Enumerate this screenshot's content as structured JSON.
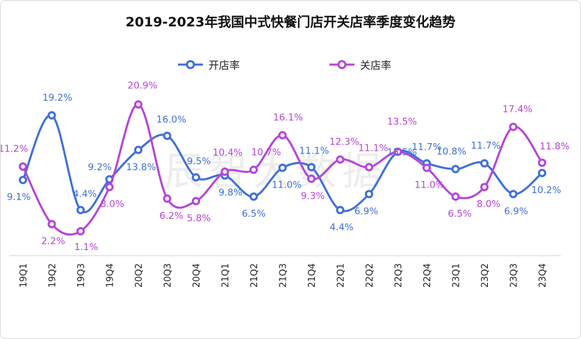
{
  "chart_data": {
    "type": "line",
    "title": "2019-2023年我国中式快餐门店开关店率季度变化趋势",
    "watermark": "辰智大数据",
    "legend_position": "top-center",
    "categories": [
      "19Q1",
      "19Q2",
      "19Q3",
      "19Q4",
      "20Q2",
      "20Q3",
      "20Q4",
      "21Q1",
      "21Q2",
      "21Q3",
      "21Q4",
      "22Q1",
      "22Q2",
      "22Q3",
      "22Q4",
      "23Q1",
      "23Q2",
      "23Q3",
      "23Q4"
    ],
    "ylim": [
      -2.5,
      23
    ],
    "series": [
      {
        "name": "开店率",
        "color": "#3f6fd8",
        "values": [
          9.1,
          19.2,
          4.4,
          9.2,
          13.8,
          16.0,
          9.5,
          9.8,
          6.5,
          11.0,
          11.1,
          4.4,
          6.9,
          13.5,
          11.7,
          10.8,
          11.7,
          6.9,
          10.2
        ],
        "labels": [
          "9.1%",
          "19.2%",
          "4.4%",
          "9.2%",
          "13.8%",
          "16.0%",
          "9.5%",
          "9.8%",
          "6.5%",
          "11.0%",
          "11.1%",
          "4.4%",
          "6.9%",
          "13.5%",
          "11.7%",
          "10.8%",
          "11.7%",
          "6.9%",
          "10.2%"
        ]
      },
      {
        "name": "关店率",
        "color": "#b545d8",
        "values": [
          11.2,
          2.2,
          1.1,
          8.0,
          20.9,
          6.2,
          5.8,
          10.4,
          10.7,
          16.1,
          9.3,
          12.3,
          11.1,
          13.5,
          11.0,
          6.5,
          8.0,
          17.4,
          11.8
        ],
        "labels": [
          "11.2%",
          "2.2%",
          "1.1%",
          "8.0%",
          "20.9%",
          "6.2%",
          "5.8%",
          "10.4%",
          "10.7%",
          "16.1%",
          "9.3%",
          "12.3%",
          "11.1%",
          "13.5%",
          "11.0%",
          "6.5%",
          "8.0%",
          "17.4%",
          "11.8%"
        ]
      }
    ]
  }
}
